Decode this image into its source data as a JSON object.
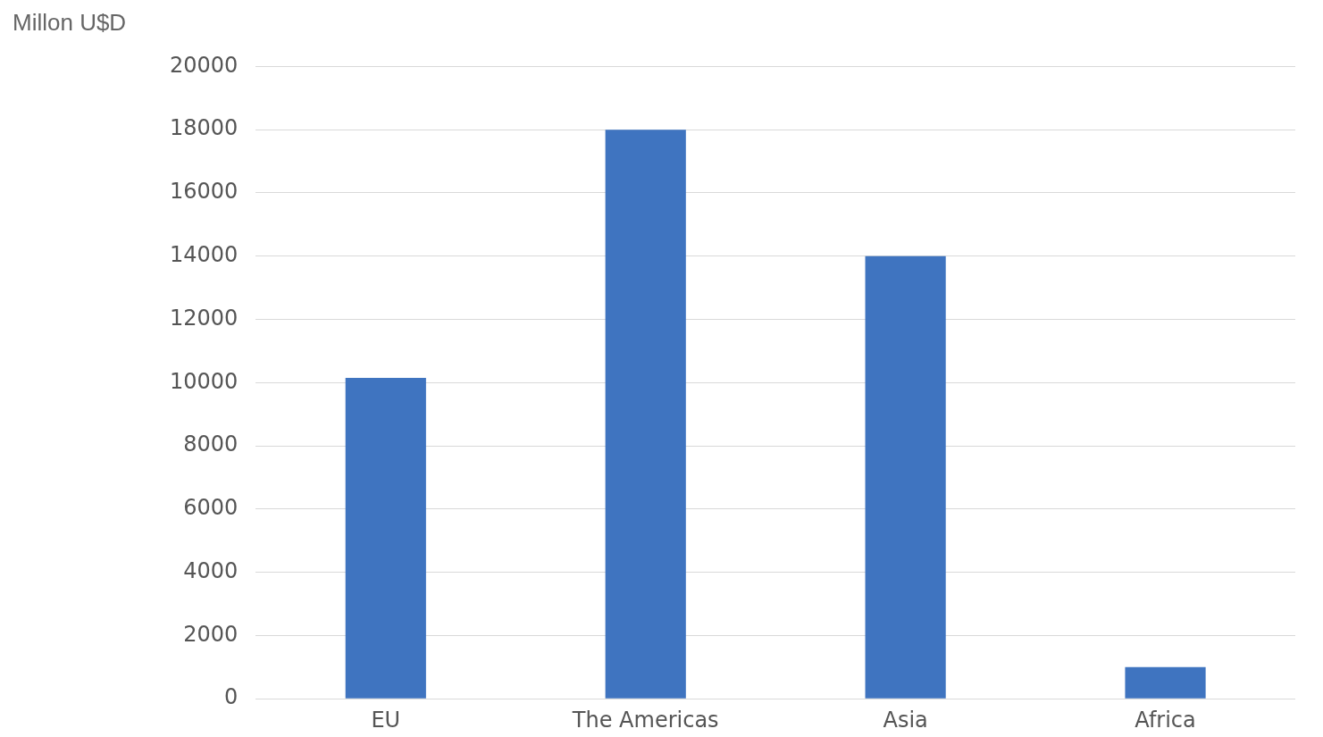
{
  "chart_data": {
    "type": "bar",
    "ylabel": "Millon U$D",
    "categories": [
      "EU",
      "The Americas",
      "Asia",
      "Africa"
    ],
    "values": [
      10150,
      18000,
      14000,
      1000
    ],
    "color": "#3f74c0",
    "ylim": [
      0,
      20000
    ],
    "yticks": [
      0,
      2000,
      4000,
      6000,
      8000,
      10000,
      12000,
      14000,
      16000,
      18000,
      20000
    ],
    "grid": "y",
    "legend": false
  }
}
